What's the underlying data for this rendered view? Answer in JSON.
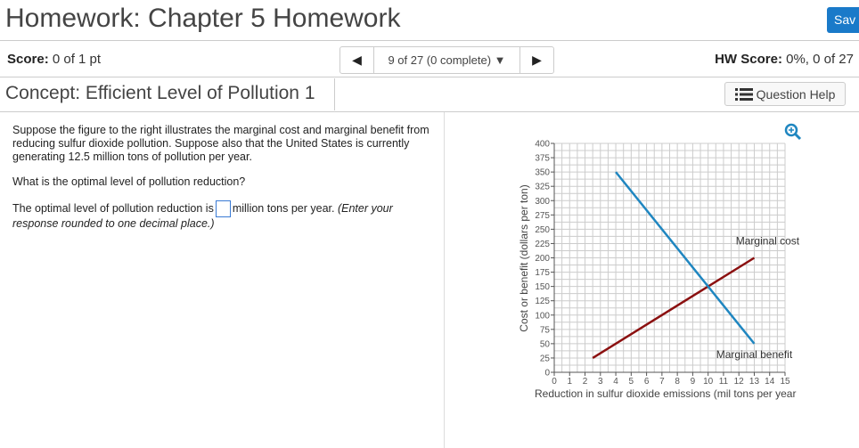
{
  "header": {
    "title": "Homework: Chapter 5 Homework",
    "save_label": "Sav"
  },
  "scorebar": {
    "score_label": "Score:",
    "score_value": "0 of 1 pt",
    "nav_text": "9 of 27 (0 complete) ▼",
    "prev_icon": "triangle-left",
    "next_icon": "triangle-right",
    "hw_label": "HW Score:",
    "hw_value": "0%, 0 of 27"
  },
  "concept": {
    "title": "Concept: Efficient Level of Pollution 1",
    "help_label": "Question Help",
    "help_icon": "list-icon"
  },
  "question": {
    "p1": "Suppose the figure to the right illustrates the marginal cost and marginal benefit from reducing sulfur dioxide pollution. Suppose also that the United States is currently generating 12.5 million tons of pollution per year.",
    "p2": "What is the optimal level of pollution reduction?",
    "p3_before": "The optimal level of pollution reduction is",
    "p3_after": "million tons per year.",
    "p3_hint": "(Enter your response rounded to one decimal place.)",
    "answer": ""
  },
  "chart_data": {
    "type": "line",
    "xlabel": "Reduction in sulfur dioxide emissions (mil tons per year",
    "ylabel": "Cost or benefit (dollars per ton)",
    "xlim": [
      0,
      15
    ],
    "ylim": [
      0,
      400
    ],
    "xticks": [
      0,
      1,
      2,
      3,
      4,
      5,
      6,
      7,
      8,
      9,
      10,
      11,
      12,
      13,
      14,
      15
    ],
    "yticks": [
      0,
      25,
      50,
      75,
      100,
      125,
      150,
      175,
      200,
      225,
      250,
      275,
      300,
      325,
      350,
      375,
      400
    ],
    "grid": true,
    "series": [
      {
        "name": "Marginal cost",
        "color": "#8b1010",
        "points": [
          [
            2.5,
            25
          ],
          [
            13,
            200
          ]
        ]
      },
      {
        "name": "Marginal benefit",
        "color": "#1f86c0",
        "points": [
          [
            4,
            350
          ],
          [
            13,
            50
          ]
        ]
      }
    ],
    "zoom_icon": "zoom-in-icon"
  }
}
